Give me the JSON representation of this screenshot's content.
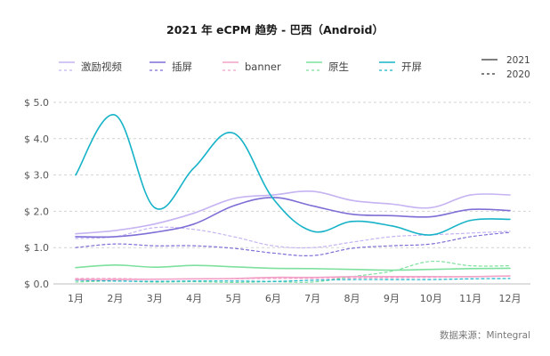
{
  "chart_data": {
    "type": "line",
    "title": "2021 年 eCPM 趋势 - 巴西（Android）",
    "categories": [
      "1月",
      "2月",
      "3月",
      "4月",
      "5月",
      "6月",
      "7月",
      "8月",
      "9月",
      "10月",
      "11月",
      "12月"
    ],
    "ylim": [
      0,
      5
    ],
    "y_ticks": [
      "$ 0.0",
      "$ 1.0",
      "$ 2.0",
      "$ 3.0",
      "$ 4.0",
      "$ 5.0"
    ],
    "y_tick_values": [
      0,
      1,
      2,
      3,
      4,
      5
    ],
    "grid": "horizontal dashed",
    "legend_position": "top",
    "year_legend": [
      {
        "label": "2021",
        "style": "solid"
      },
      {
        "label": "2020",
        "style": "dashed"
      }
    ],
    "series": [
      {
        "name": "激励视频",
        "year": "2021",
        "color": "#c5b3f2",
        "values": [
          1.38,
          1.47,
          1.65,
          1.95,
          2.35,
          2.45,
          2.55,
          2.3,
          2.2,
          2.1,
          2.45,
          2.45
        ]
      },
      {
        "name": "激励视频",
        "year": "2020",
        "color": "#c5b3f2",
        "values": [
          1.25,
          1.3,
          1.55,
          1.5,
          1.3,
          1.05,
          1.0,
          1.15,
          1.3,
          1.35,
          1.4,
          1.45
        ]
      },
      {
        "name": "插屏",
        "year": "2021",
        "color": "#7e6fd6",
        "values": [
          1.3,
          1.3,
          1.42,
          1.65,
          2.15,
          2.38,
          2.15,
          1.92,
          1.88,
          1.85,
          2.05,
          2.02
        ]
      },
      {
        "name": "插屏",
        "year": "2020",
        "color": "#7e6fd6",
        "values": [
          1.0,
          1.1,
          1.05,
          1.05,
          0.98,
          0.85,
          0.78,
          0.98,
          1.05,
          1.1,
          1.3,
          1.42
        ]
      },
      {
        "name": "banner",
        "year": "2021",
        "color": "#f2a2c8",
        "values": [
          0.12,
          0.12,
          0.13,
          0.14,
          0.15,
          0.18,
          0.18,
          0.2,
          0.2,
          0.2,
          0.2,
          0.22
        ]
      },
      {
        "name": "banner",
        "year": "2020",
        "color": "#f2a2c8",
        "values": [
          0.15,
          0.15,
          0.13,
          0.14,
          0.14,
          0.15,
          0.15,
          0.16,
          0.17,
          0.18,
          0.2,
          0.22
        ]
      },
      {
        "name": "原生",
        "year": "2021",
        "color": "#7ee09e",
        "values": [
          0.45,
          0.52,
          0.46,
          0.51,
          0.47,
          0.43,
          0.42,
          0.4,
          0.38,
          0.4,
          0.42,
          0.43
        ]
      },
      {
        "name": "原生",
        "year": "2020",
        "color": "#7ee09e",
        "values": [
          0.05,
          0.08,
          0.05,
          0.06,
          0.04,
          0.06,
          0.05,
          0.2,
          0.35,
          0.62,
          0.5,
          0.5
        ]
      },
      {
        "name": "开屏",
        "year": "2021",
        "color": "#16b3c8",
        "values": [
          3.0,
          4.65,
          2.1,
          3.2,
          4.15,
          2.35,
          1.45,
          1.72,
          1.6,
          1.35,
          1.75,
          1.78
        ]
      },
      {
        "name": "开屏",
        "year": "2020",
        "color": "#16b3c8",
        "values": [
          0.1,
          0.08,
          0.07,
          0.08,
          0.08,
          0.07,
          0.1,
          0.12,
          0.12,
          0.12,
          0.14,
          0.15
        ]
      }
    ],
    "legend": [
      {
        "name": "激励视频",
        "color": "#c5b3f2"
      },
      {
        "name": "插屏",
        "color": "#7e6fd6"
      },
      {
        "name": "banner",
        "color": "#f2a2c8"
      },
      {
        "name": "原生",
        "color": "#7ee09e"
      },
      {
        "name": "开屏",
        "color": "#16b3c8"
      }
    ],
    "source": "数据来源：Mintegral"
  }
}
